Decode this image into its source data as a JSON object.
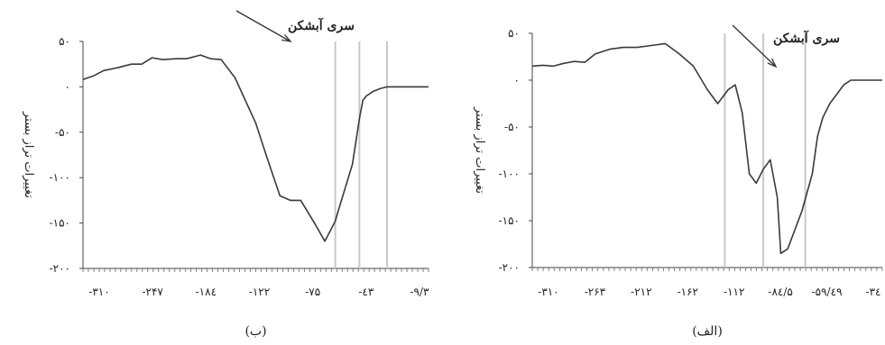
{
  "chart_data": [
    {
      "type": "line",
      "panel_label": "(ب)",
      "ylabel": "تغییرات تراز بستر",
      "annotation": "سری آبشکن",
      "y_ticks": [
        "۵۰",
        "۰",
        "-۵۰",
        "-۱۰۰",
        "-۱۵۰",
        "-۲۰۰"
      ],
      "y_tick_values": [
        50,
        0,
        -50,
        -100,
        -150,
        -200
      ],
      "x_ticks": [
        "-۳۱۰",
        "-۲۴۷",
        "-۱۸٤",
        "-۱۲۲",
        "-۷۵",
        "-٤۳",
        "-۹/۳"
      ],
      "ylim": [
        -200,
        50
      ],
      "grid": false,
      "series": [
        {
          "x": [
            0,
            0.03,
            0.06,
            0.1,
            0.14,
            0.17,
            0.2,
            0.23,
            0.27,
            0.3,
            0.34,
            0.37,
            0.4,
            0.44,
            0.47,
            0.5,
            0.53,
            0.57,
            0.6,
            0.63,
            0.67,
            0.7,
            0.73,
            0.74,
            0.76,
            0.78,
            0.8,
            0.81,
            0.82,
            0.84,
            0.86,
            0.88,
            0.9,
            0.92,
            0.94,
            0.96,
            0.98,
            1.0
          ],
          "y": [
            8,
            12,
            18,
            21,
            25,
            25,
            32,
            30,
            31,
            31,
            35,
            31,
            30,
            10,
            -15,
            -40,
            -75,
            -120,
            -125,
            -125,
            -150,
            -170,
            -148,
            -135,
            -110,
            -85,
            -35,
            -15,
            -10,
            -5,
            -2,
            0,
            0,
            0,
            0,
            0,
            0,
            0
          ]
        }
      ],
      "vlines_x_frac": [
        0.73,
        0.8,
        0.88
      ]
    },
    {
      "type": "line",
      "panel_label": "(الف)",
      "ylabel": "تغییرات تراز بستر",
      "annotation": "سری آبشکن",
      "y_ticks": [
        "۵۰",
        "۰",
        "-۵۰",
        "-۱۰۰",
        "-۱۵۰",
        "-۲۰۰"
      ],
      "y_tick_values": [
        50,
        0,
        -50,
        -100,
        -150,
        -200
      ],
      "x_ticks": [
        "-۳۱۰",
        "-۲۶۳",
        "-۲۱۲",
        "-۱۶۲",
        "-۱۱۲",
        "-۸٤/۵",
        "-۵۹/٤۹",
        "-۳٤"
      ],
      "ylim": [
        -200,
        50
      ],
      "grid": false,
      "series": [
        {
          "x": [
            0,
            0.03,
            0.06,
            0.09,
            0.12,
            0.15,
            0.18,
            0.22,
            0.26,
            0.3,
            0.34,
            0.38,
            0.42,
            0.46,
            0.5,
            0.53,
            0.56,
            0.58,
            0.6,
            0.62,
            0.64,
            0.66,
            0.68,
            0.7,
            0.71,
            0.73,
            0.75,
            0.77,
            0.8,
            0.815,
            0.83,
            0.85,
            0.87,
            0.89,
            0.91,
            0.93,
            0.95,
            0.97,
            1.0
          ],
          "y": [
            15,
            16,
            15,
            18,
            20,
            19,
            28,
            33,
            35,
            35,
            37,
            39,
            28,
            15,
            -10,
            -25,
            -10,
            -5,
            -35,
            -100,
            -110,
            -95,
            -85,
            -125,
            -185,
            -180,
            -160,
            -140,
            -100,
            -60,
            -40,
            -25,
            -15,
            -5,
            0,
            0,
            0,
            0,
            0
          ]
        }
      ],
      "vlines_x_frac": [
        0.55,
        0.66,
        0.78
      ]
    }
  ]
}
